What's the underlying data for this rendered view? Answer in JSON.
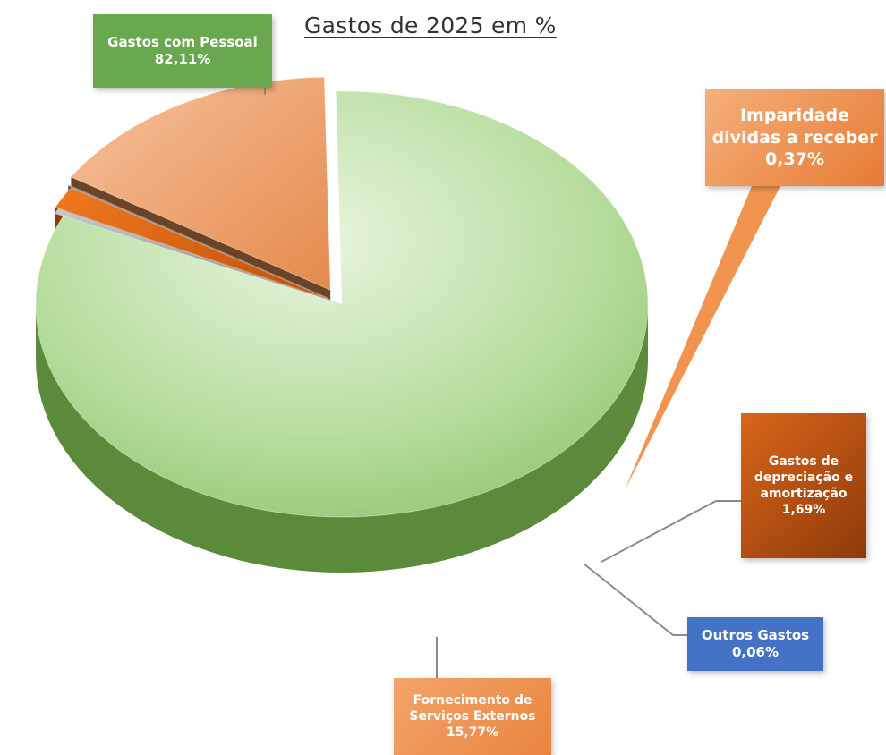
{
  "chart_data": {
    "type": "pie",
    "title": "Gastos de 2025 em %",
    "slices": [
      {
        "label_lines": [
          "Gastos com Pessoal"
        ],
        "value": 82.11,
        "value_text": "82,11%",
        "color": "#8cc56e",
        "side_color": "#5a8a3a"
      },
      {
        "label_lines": [
          "Imparidade",
          "dividas a receber"
        ],
        "value": 0.37,
        "value_text": "0,37%",
        "color": "#a3a3a3",
        "side_color": "#6f6f6f"
      },
      {
        "label_lines": [
          "Gastos de",
          "depreciação e",
          "amortização"
        ],
        "value": 1.69,
        "value_text": "1,69%",
        "color": "#e8650f",
        "side_color": "#8e3a0a"
      },
      {
        "label_lines": [
          "Outros Gastos"
        ],
        "value": 0.06,
        "value_text": "0,06%",
        "color": "#3f5a8f",
        "side_color": "#233a63"
      },
      {
        "label_lines": [
          "Fornecimento de",
          "Serviços Externos"
        ],
        "value": 15.77,
        "value_text": "15,77%",
        "color": "#f0a877",
        "side_color": "#6b4428"
      }
    ]
  }
}
